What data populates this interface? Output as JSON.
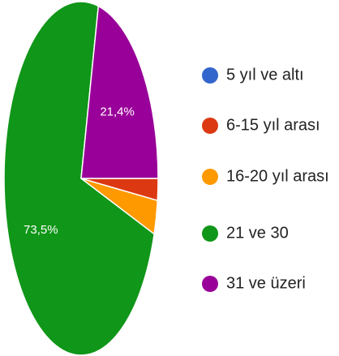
{
  "chart_data": {
    "type": "pie",
    "categories": [
      "5 yıl ve altı",
      "6-15 yıl arası",
      "16-20 yıl arası",
      "21 ve 30",
      "31 ve üzeri"
    ],
    "values": [
      0,
      2.0,
      3.1,
      73.5,
      21.4
    ],
    "value_labels": [
      null,
      null,
      null,
      "73,5%",
      "21,4%"
    ],
    "colors": [
      "#3366cc",
      "#dc3912",
      "#ff9900",
      "#109618",
      "#990099"
    ]
  }
}
